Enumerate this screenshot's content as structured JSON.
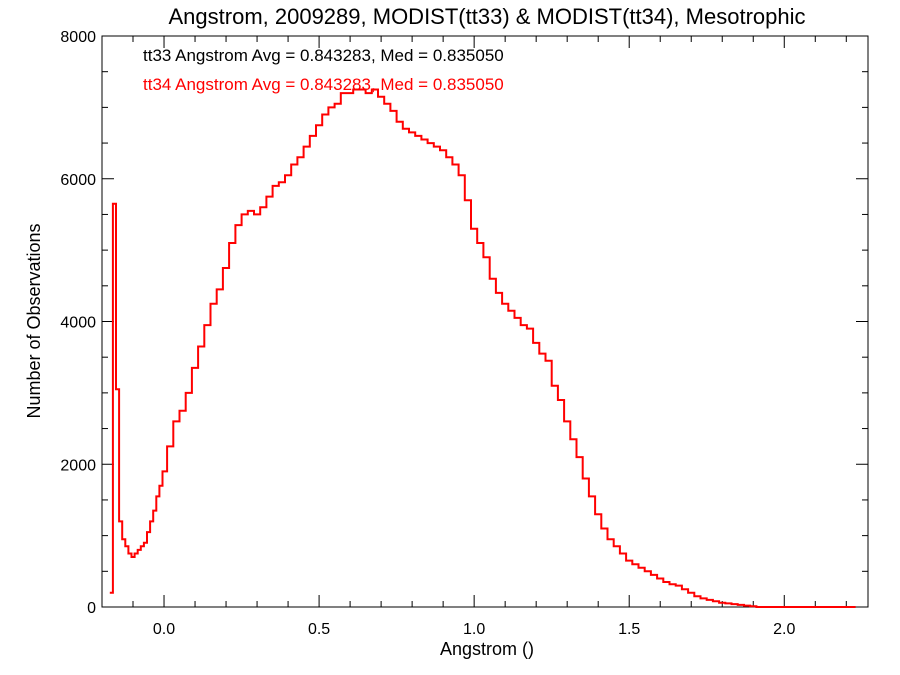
{
  "chart_data": {
    "type": "line",
    "step": true,
    "title": "Angstrom, 2009289, MODIST(tt33) & MODIST(tt34), Mesotrophic",
    "xlabel": "Angstrom ()",
    "ylabel": "Number of Observations",
    "xlim": [
      -0.2,
      2.27
    ],
    "ylim": [
      0,
      8000
    ],
    "x_ticks": [
      0.0,
      0.5,
      1.0,
      1.5,
      2.0
    ],
    "x_tick_labels": [
      "0.0",
      "0.5",
      "1.0",
      "1.5",
      "2.0"
    ],
    "y_ticks": [
      0,
      2000,
      4000,
      6000,
      8000
    ],
    "y_tick_labels": [
      "0",
      "2000",
      "4000",
      "6000",
      "8000"
    ],
    "grid": false,
    "annotations": [
      {
        "text": "tt33 Angstrom Avg = 0.843283, Med = 0.835050",
        "color": "#000000"
      },
      {
        "text": "tt34 Angstrom Avg = 0.843283, Med = 0.835050",
        "color": "#ff0000"
      }
    ],
    "series": [
      {
        "color": "#ff0000",
        "x": [
          -0.17,
          -0.16,
          -0.15,
          -0.14,
          -0.13,
          -0.12,
          -0.11,
          -0.1,
          -0.09,
          -0.08,
          -0.07,
          -0.06,
          -0.05,
          -0.04,
          -0.03,
          -0.02,
          -0.01,
          0.0,
          0.02,
          0.04,
          0.06,
          0.08,
          0.1,
          0.12,
          0.14,
          0.16,
          0.18,
          0.2,
          0.22,
          0.24,
          0.26,
          0.28,
          0.3,
          0.32,
          0.34,
          0.36,
          0.38,
          0.4,
          0.42,
          0.44,
          0.46,
          0.48,
          0.5,
          0.52,
          0.54,
          0.56,
          0.58,
          0.6,
          0.62,
          0.64,
          0.66,
          0.68,
          0.7,
          0.72,
          0.74,
          0.76,
          0.78,
          0.8,
          0.82,
          0.84,
          0.86,
          0.88,
          0.9,
          0.92,
          0.94,
          0.96,
          0.98,
          1.0,
          1.02,
          1.04,
          1.06,
          1.08,
          1.1,
          1.12,
          1.14,
          1.16,
          1.18,
          1.2,
          1.22,
          1.24,
          1.26,
          1.28,
          1.3,
          1.32,
          1.34,
          1.36,
          1.38,
          1.4,
          1.42,
          1.44,
          1.46,
          1.48,
          1.5,
          1.52,
          1.54,
          1.56,
          1.58,
          1.6,
          1.62,
          1.64,
          1.66,
          1.68,
          1.7,
          1.72,
          1.74,
          1.76,
          1.78,
          1.8,
          1.82,
          1.84,
          1.86,
          1.88,
          1.9,
          1.92,
          1.94,
          1.96,
          1.98,
          2.0,
          2.02,
          2.04,
          2.06,
          2.08,
          2.1,
          2.12,
          2.14,
          2.16,
          2.18,
          2.2,
          2.22
        ],
        "y": [
          200,
          5650,
          3050,
          1200,
          950,
          850,
          750,
          700,
          750,
          800,
          850,
          900,
          1050,
          1200,
          1350,
          1550,
          1700,
          1900,
          2250,
          2600,
          2750,
          3000,
          3350,
          3650,
          3950,
          4250,
          4450,
          4750,
          5100,
          5350,
          5500,
          5550,
          5500,
          5600,
          5750,
          5900,
          5950,
          6050,
          6200,
          6300,
          6450,
          6600,
          6750,
          6900,
          7000,
          7050,
          7200,
          7200,
          7250,
          7250,
          7200,
          7250,
          7150,
          7050,
          6950,
          6800,
          6700,
          6650,
          6600,
          6550,
          6500,
          6450,
          6400,
          6300,
          6200,
          6050,
          5700,
          5300,
          5100,
          4900,
          4600,
          4400,
          4250,
          4150,
          4050,
          3950,
          3900,
          3700,
          3550,
          3450,
          3100,
          2900,
          2600,
          2350,
          2100,
          1800,
          1550,
          1300,
          1100,
          950,
          850,
          750,
          650,
          600,
          550,
          500,
          450,
          400,
          350,
          320,
          300,
          250,
          200,
          150,
          120,
          100,
          80,
          60,
          50,
          40,
          30,
          20,
          10,
          0,
          0,
          0,
          0,
          0,
          0,
          0,
          0,
          0,
          0,
          0,
          0,
          0,
          0,
          0,
          0
        ]
      }
    ]
  }
}
